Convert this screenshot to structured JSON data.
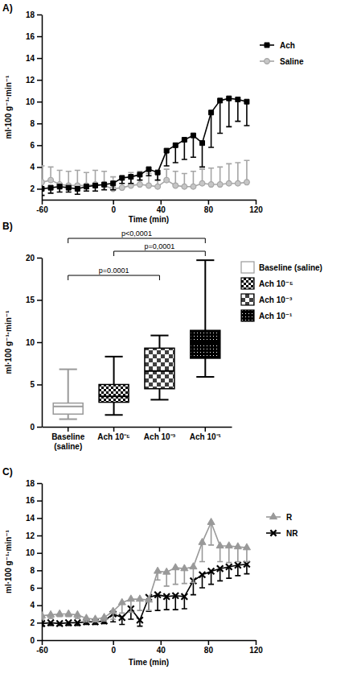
{
  "chart_data": [
    {
      "type": "line",
      "title": "A)",
      "x_label": "Time (min)",
      "y_label": "ml·100 g⁻¹·min⁻¹",
      "x": [
        -60,
        -52.5,
        -45,
        -37.5,
        -30,
        -22.5,
        -15,
        -7.5,
        0,
        7.5,
        15,
        22.5,
        30,
        37.5,
        45,
        52.5,
        60,
        67.5,
        75,
        82.5,
        90,
        97.5,
        105,
        112.5
      ],
      "series": [
        {
          "name": "Ach",
          "color": "#000000",
          "marker": "square",
          "values": [
            2.0,
            2.1,
            2.2,
            2.1,
            2.0,
            2.2,
            2.3,
            2.4,
            2.5,
            3.0,
            3.1,
            3.3,
            3.8,
            3.5,
            5.5,
            6.0,
            6.5,
            6.9,
            6.2,
            9.0,
            10.1,
            10.3,
            10.2,
            10.0
          ],
          "error_minus": [
            0.6,
            0.5,
            0.5,
            0.4,
            0.5,
            0.4,
            0.5,
            0.5,
            0.6,
            0.5,
            0.6,
            0.5,
            0.6,
            0.7,
            1.4,
            1.6,
            1.8,
            2.0,
            2.2,
            3.2,
            3.0,
            2.6,
            2.0,
            2.2
          ]
        },
        {
          "name": "Saline",
          "color": "#a6a6a6",
          "marker": "circle",
          "values": [
            2.6,
            2.8,
            2.4,
            2.3,
            2.3,
            2.3,
            2.4,
            2.3,
            2.0,
            2.1,
            2.3,
            2.4,
            2.3,
            2.2,
            2.8,
            2.3,
            2.2,
            2.2,
            2.5,
            2.4,
            2.4,
            2.5,
            2.5,
            2.6
          ],
          "error_plus": [
            1.5,
            1.2,
            1.3,
            1.3,
            1.4,
            1.2,
            1.3,
            1.3,
            1.1,
            1.0,
            1.2,
            1.2,
            1.1,
            1.2,
            1.0,
            1.3,
            1.2,
            1.4,
            1.3,
            1.5,
            1.6,
            1.8,
            1.9,
            2.0
          ]
        }
      ],
      "xlim": [
        -60,
        120
      ],
      "xticks": [
        -60,
        0,
        40,
        80,
        120
      ],
      "ylim": [
        1,
        18
      ],
      "yticks": [
        2,
        4,
        6,
        8,
        10,
        12,
        14,
        16,
        18
      ],
      "legend": "right"
    },
    {
      "type": "box",
      "title": "B)",
      "y_label": "ml·100 g⁻¹·min⁻¹",
      "categories": [
        "Baseline (saline)",
        "Ach 10⁻⁵",
        "Ach 10⁻³",
        "Ach 10⁻¹"
      ],
      "colors": [
        "#999999",
        "#000000",
        "#000000",
        "#000000"
      ],
      "boxes": [
        {
          "min": 0.9,
          "q1": 1.5,
          "median": 2.4,
          "q3": 2.8,
          "max": 6.8
        },
        {
          "min": 1.4,
          "q1": 2.9,
          "median": 3.6,
          "q3": 5.0,
          "max": 8.3
        },
        {
          "min": 3.2,
          "q1": 4.5,
          "median": 6.6,
          "q3": 9.3,
          "max": 10.8
        },
        {
          "min": 5.9,
          "q1": 8.1,
          "median": 10.0,
          "q3": 11.4,
          "max": 19.7
        }
      ],
      "annotations": [
        {
          "text": "p<0,0001",
          "from": 0,
          "to": 3
        },
        {
          "text": "p=0,0001",
          "from": 1,
          "to": 3
        },
        {
          "text": "p=0.0001",
          "from": 0,
          "to": 2
        }
      ],
      "ylim": [
        0,
        20
      ],
      "yticks": [
        0,
        5,
        10,
        15,
        20
      ],
      "legend": "right"
    },
    {
      "type": "line",
      "title": "C)",
      "x_label": "Time (min)",
      "y_label": "ml·100 g⁻¹·min⁻¹",
      "x": [
        -60,
        -52.5,
        -45,
        -37.5,
        -30,
        -22.5,
        -15,
        -7.5,
        0,
        7.5,
        15,
        22.5,
        30,
        37.5,
        45,
        52.5,
        60,
        67.5,
        75,
        82.5,
        90,
        97.5,
        105,
        112.5
      ],
      "series": [
        {
          "name": "R",
          "color": "#999999",
          "marker": "triangle",
          "values": [
            2.8,
            2.9,
            3.0,
            3.0,
            2.9,
            2.5,
            2.4,
            2.6,
            3.3,
            4.3,
            4.7,
            4.7,
            4.6,
            7.9,
            7.8,
            8.3,
            8.2,
            8.4,
            11.2,
            13.5,
            10.8,
            10.8,
            10.7,
            10.6
          ],
          "error_minus": [
            0.4,
            0.4,
            0.3,
            0.3,
            0.4,
            0.4,
            0.3,
            0.4,
            0.9,
            1.2,
            1.5,
            1.3,
            1.2,
            1.0,
            1.6,
            1.9,
            1.7,
            1.8,
            2.2,
            2.6,
            1.8,
            1.9,
            1.7,
            1.6
          ]
        },
        {
          "name": "NR",
          "color": "#000000",
          "marker": "x",
          "values": [
            1.9,
            2.0,
            1.9,
            2.0,
            2.0,
            2.1,
            2.1,
            2.2,
            3.0,
            2.6,
            3.6,
            2.3,
            4.9,
            5.2,
            5.0,
            5.1,
            5.0,
            6.8,
            7.5,
            7.9,
            8.2,
            8.4,
            8.6,
            8.7
          ],
          "error_minus": [
            0.3,
            0.3,
            0.2,
            0.3,
            0.3,
            0.3,
            0.3,
            0.3,
            0.9,
            0.8,
            1.2,
            0.7,
            1.6,
            1.8,
            1.5,
            1.6,
            1.4,
            1.6,
            1.5,
            1.5,
            1.4,
            1.3,
            1.2,
            1.1
          ]
        }
      ],
      "xlim": [
        -60,
        120
      ],
      "xticks": [
        -60,
        0,
        40,
        80,
        120
      ],
      "ylim": [
        0,
        18
      ],
      "yticks": [
        0,
        2,
        4,
        6,
        8,
        10,
        12,
        14,
        16,
        18
      ],
      "legend": "right"
    }
  ]
}
